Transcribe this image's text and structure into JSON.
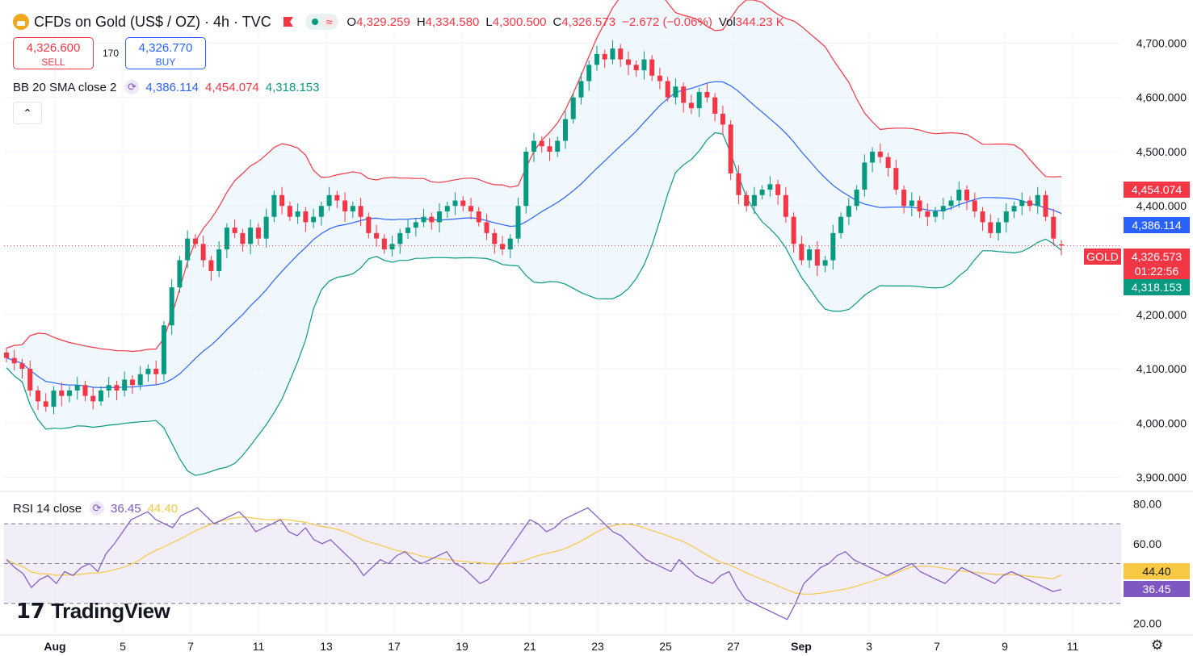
{
  "header": {
    "title": "CFDs on Gold (US$ / OZ) · 4h · TVC",
    "open_label": "O",
    "open": "4,329.259",
    "high_label": "H",
    "high": "4,334.580",
    "low_label": "L",
    "low": "4,300.500",
    "close_label": "C",
    "close": "4,326.573",
    "change": "−2.672 (−0.06%)",
    "vol_label": "Vol",
    "vol": "344.23 K",
    "wave_glyph": "≈"
  },
  "trade": {
    "sell_price": "4,326.600",
    "sell_label": "SELL",
    "spread": "170",
    "buy_price": "4,326.770",
    "buy_label": "BUY"
  },
  "bb": {
    "name": "BB 20 SMA close 2",
    "basis": "4,386.114",
    "upper": "4,454.074",
    "lower": "4,318.153"
  },
  "rsi": {
    "name": "RSI 14 close",
    "value": "36.45",
    "ma": "44.40"
  },
  "price_axis": {
    "ticks": [
      "4,700.000",
      "4,600.000",
      "4,500.000",
      "4,400.000",
      "4,200.000",
      "4,100.000",
      "4,000.000",
      "3,900.000"
    ],
    "tag_upper": "4,454.074",
    "tag_basis": "4,386.114",
    "tag_symbol": "GOLD",
    "tag_price": "4,326.573",
    "tag_countdown": "01:22:56",
    "tag_lower": "4,318.153"
  },
  "rsi_axis": {
    "ticks": [
      "80.00",
      "60.00",
      "20.00"
    ],
    "tag_ma": "44.40",
    "tag_value": "36.45"
  },
  "time_axis": {
    "labels": [
      "Aug",
      "5",
      "7",
      "11",
      "13",
      "17",
      "19",
      "21",
      "23",
      "25",
      "27",
      "Sep",
      "3",
      "7",
      "9",
      "11"
    ]
  },
  "branding": {
    "logo_text": "TradingView"
  },
  "colors": {
    "up": "#089981",
    "down": "#f23645",
    "basis": "#2962ff",
    "upper": "#f23645",
    "lower": "#089981",
    "rsi": "#7e57c2",
    "rsi_ma": "#f7c843"
  },
  "chart_data": [
    {
      "type": "candlestick",
      "title": "CFDs on Gold (US$ / OZ) · 4h · TVC",
      "ylim": [
        3880,
        4720
      ],
      "ohlc_close_series": [
        4120,
        4110,
        4100,
        4060,
        4040,
        4030,
        4060,
        4050,
        4060,
        4070,
        4050,
        4040,
        4060,
        4070,
        4060,
        4080,
        4070,
        4090,
        4100,
        4090,
        4180,
        4250,
        4300,
        4340,
        4330,
        4300,
        4280,
        4320,
        4360,
        4350,
        4330,
        4360,
        4340,
        4380,
        4420,
        4400,
        4380,
        4390,
        4370,
        4380,
        4400,
        4420,
        4410,
        4390,
        4400,
        4380,
        4350,
        4340,
        4320,
        4330,
        4350,
        4360,
        4370,
        4380,
        4370,
        4390,
        4400,
        4410,
        4400,
        4390,
        4370,
        4350,
        4330,
        4320,
        4340,
        4400,
        4500,
        4520,
        4510,
        4500,
        4520,
        4560,
        4600,
        4630,
        4660,
        4680,
        4670,
        4690,
        4670,
        4660,
        4650,
        4670,
        4640,
        4630,
        4600,
        4620,
        4590,
        4580,
        4610,
        4600,
        4570,
        4550,
        4460,
        4420,
        4400,
        4420,
        4430,
        4440,
        4420,
        4380,
        4330,
        4300,
        4320,
        4290,
        4300,
        4350,
        4380,
        4400,
        4430,
        4480,
        4500,
        4490,
        4470,
        4430,
        4400,
        4410,
        4390,
        4380,
        4390,
        4400,
        4410,
        4430,
        4410,
        4390,
        4370,
        4350,
        4370,
        4390,
        4400,
        4410,
        4400,
        4420,
        4380,
        4340,
        4327
      ],
      "current_close": 4326.573,
      "open": 4329.259,
      "high": 4334.58,
      "low": 4300.5,
      "close": 4326.573
    },
    {
      "type": "line",
      "title": "BB 20 SMA close 2",
      "series": [
        {
          "name": "basis",
          "last": 4386.114
        },
        {
          "name": "upper",
          "last": 4454.074
        },
        {
          "name": "lower",
          "last": 4318.153
        }
      ]
    },
    {
      "type": "line",
      "title": "RSI 14 close",
      "ylim": [
        15,
        85
      ],
      "bands": [
        30,
        50,
        70
      ],
      "series": [
        {
          "name": "RSI",
          "last": 36.45,
          "values": [
            52,
            48,
            45,
            38,
            42,
            44,
            40,
            46,
            44,
            48,
            50,
            46,
            55,
            60,
            66,
            72,
            74,
            76,
            72,
            70,
            68,
            74,
            76,
            78,
            74,
            70,
            72,
            74,
            76,
            72,
            66,
            68,
            70,
            72,
            66,
            64,
            68,
            62,
            60,
            62,
            58,
            54,
            50,
            44,
            48,
            52,
            50,
            54,
            56,
            52,
            50,
            52,
            54,
            56,
            50,
            48,
            44,
            40,
            42,
            48,
            54,
            60,
            66,
            72,
            70,
            66,
            68,
            72,
            74,
            76,
            78,
            74,
            70,
            66,
            64,
            60,
            56,
            52,
            50,
            48,
            46,
            52,
            48,
            44,
            42,
            40,
            44,
            46,
            38,
            32,
            30,
            28,
            26,
            24,
            22,
            30,
            40,
            44,
            48,
            50,
            54,
            56,
            52,
            50,
            48,
            46,
            44,
            46,
            48,
            50,
            46,
            44,
            42,
            40,
            44,
            48,
            46,
            44,
            42,
            40,
            44,
            46,
            44,
            42,
            40,
            38,
            36,
            37
          ]
        },
        {
          "name": "RSI MA",
          "last": 44.4
        }
      ]
    }
  ]
}
